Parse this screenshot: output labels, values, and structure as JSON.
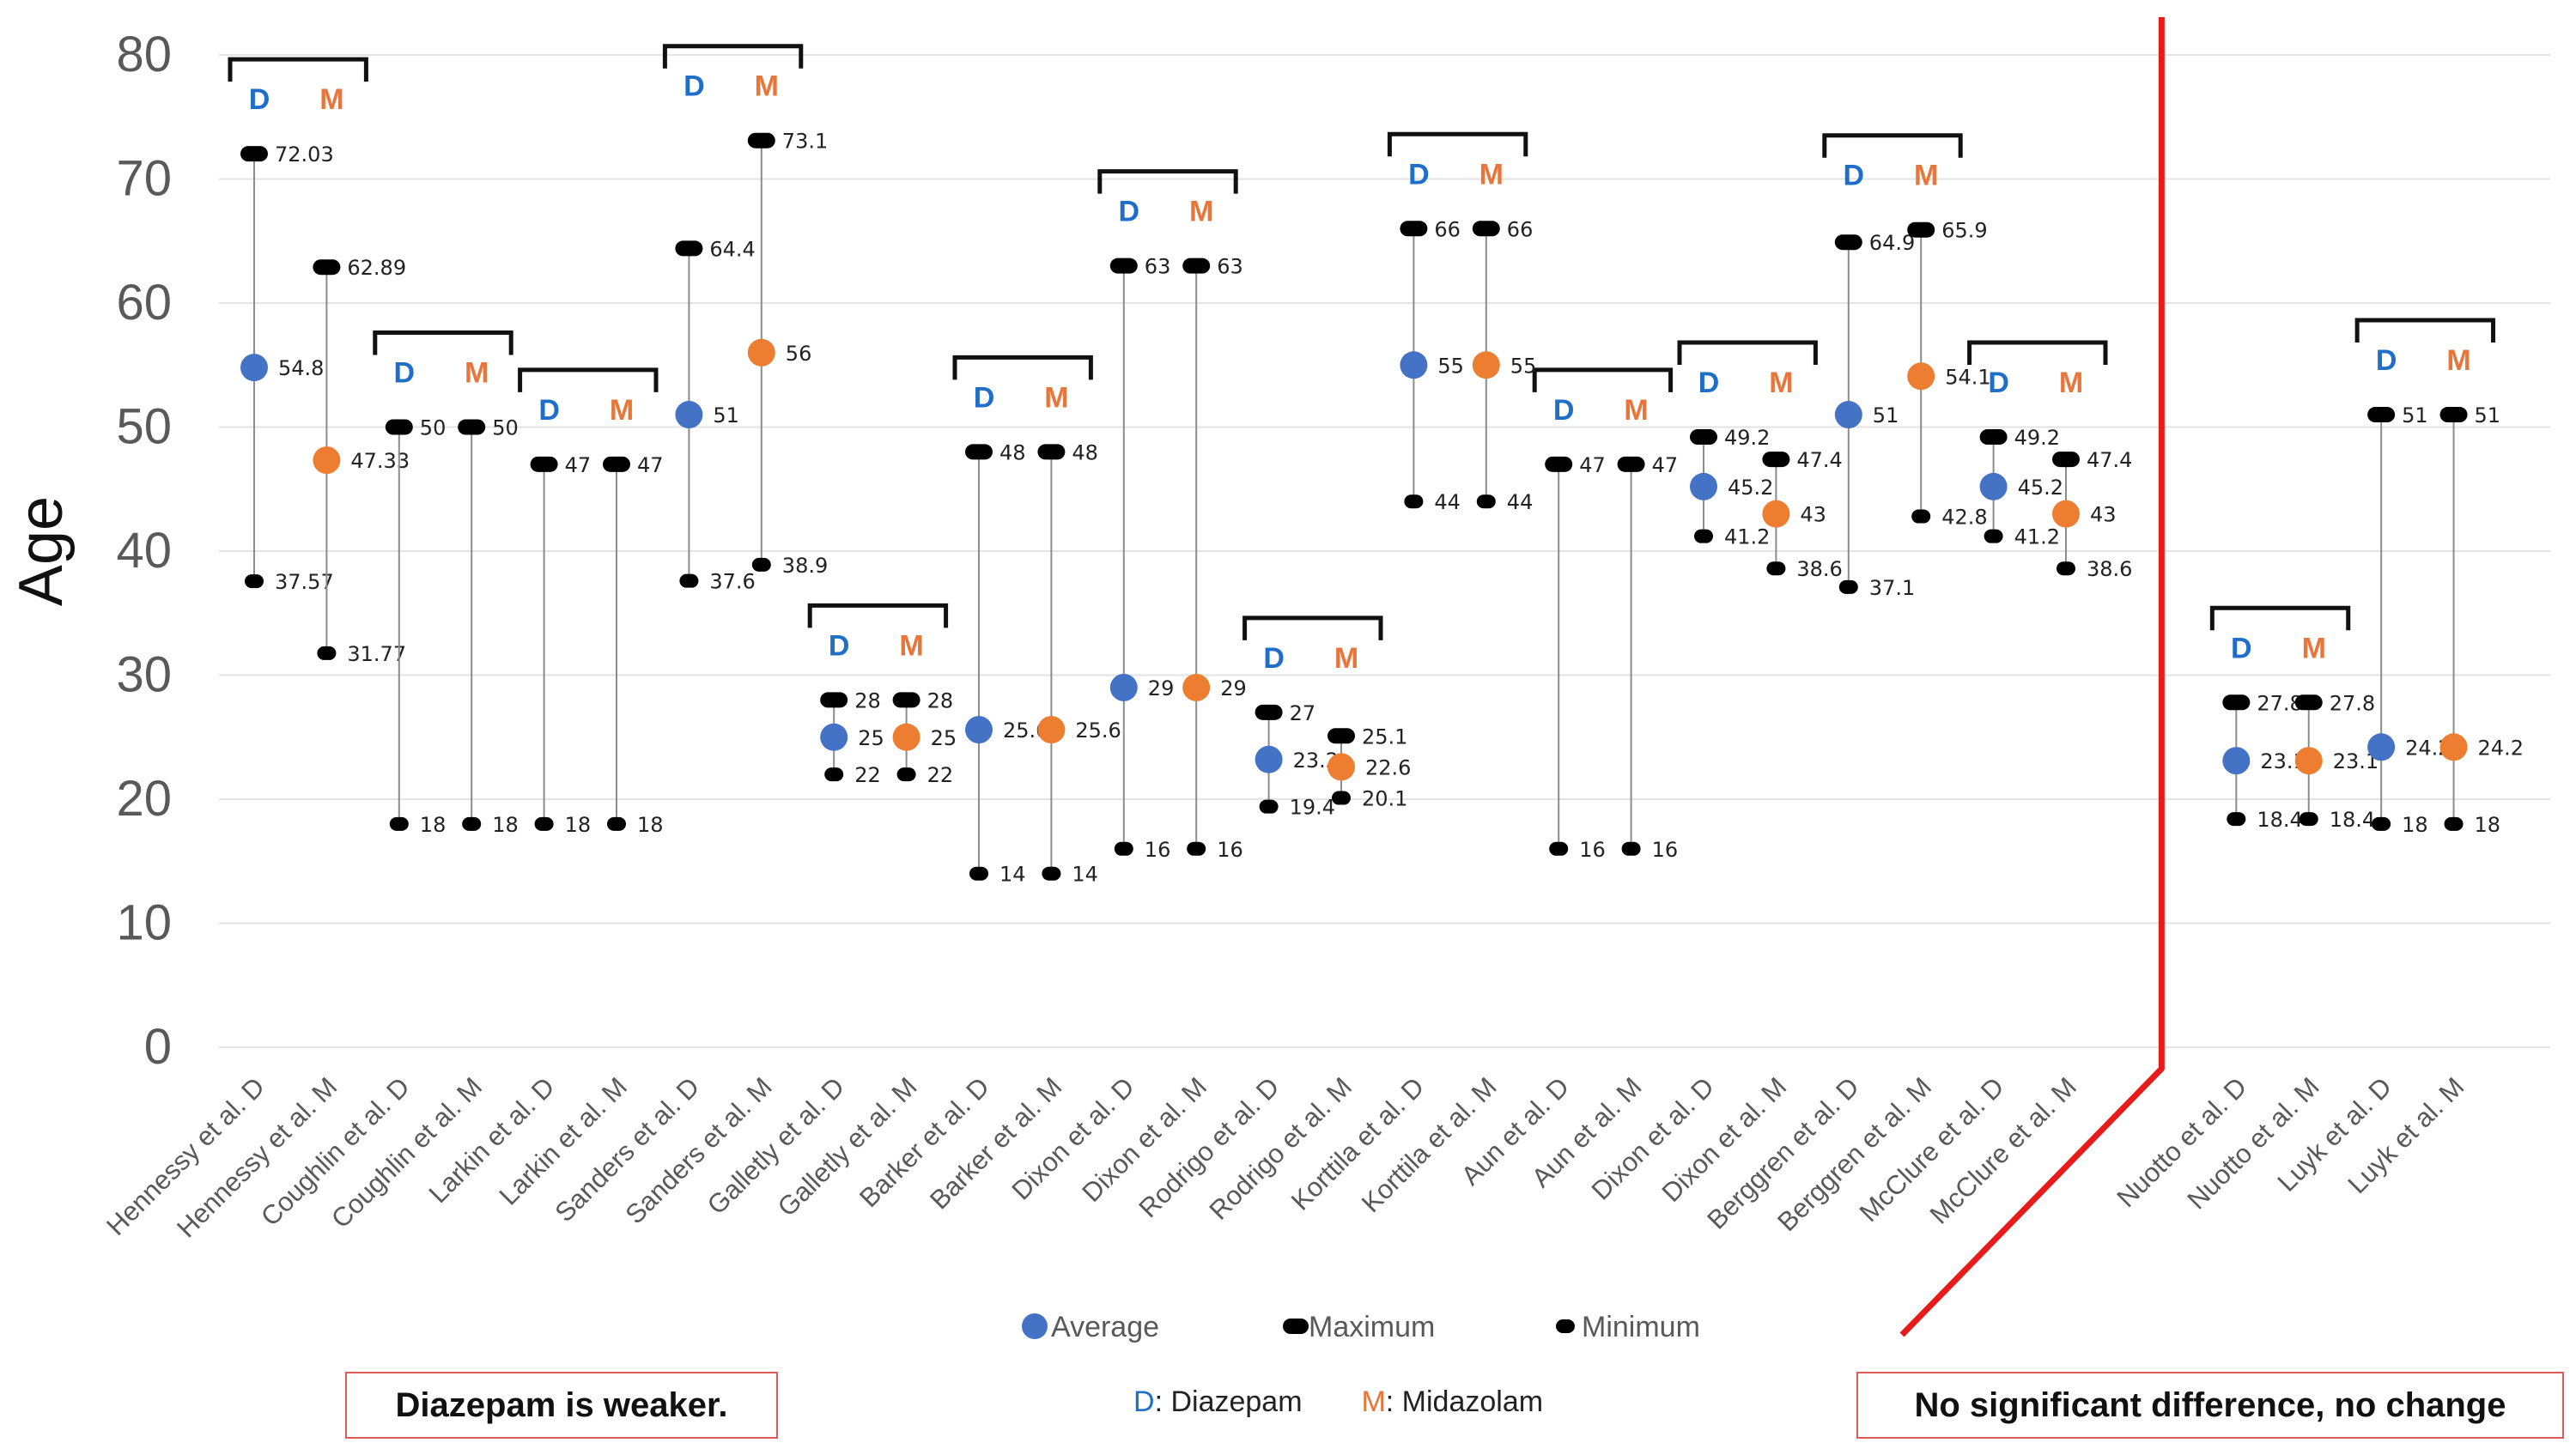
{
  "chart_data": {
    "type": "range-dot",
    "ylabel": "Age",
    "xlabel": "",
    "ylim": [
      0,
      80
    ],
    "yticks": [
      0,
      10,
      20,
      30,
      40,
      50,
      60,
      70,
      80
    ],
    "grid": true,
    "series_legend": [
      {
        "name": "Average",
        "color": "#4472c4"
      },
      {
        "name": "Maximum",
        "color": "#000000"
      },
      {
        "name": "Minimum",
        "color": "#000000"
      }
    ],
    "groups": [
      {
        "pair": [
          "D",
          "M"
        ],
        "studies": [
          {
            "label": "Hennessy et al. D",
            "drug": "D",
            "avg": 54.8,
            "max": 72.03,
            "min": 37.57
          },
          {
            "label": "Hennessy et al. M",
            "drug": "M",
            "avg": 47.33,
            "max": 62.89,
            "min": 31.77
          }
        ]
      },
      {
        "pair": [
          "D",
          "M"
        ],
        "studies": [
          {
            "label": "Coughlin et al. D",
            "drug": "D",
            "avg": null,
            "max": 50,
            "min": 18
          },
          {
            "label": "Coughlin et al. M",
            "drug": "M",
            "avg": null,
            "max": 50,
            "min": 18
          }
        ]
      },
      {
        "pair": [
          "D",
          "M"
        ],
        "studies": [
          {
            "label": "Larkin et al. D",
            "drug": "D",
            "avg": null,
            "max": 47,
            "min": 18
          },
          {
            "label": "Larkin et al. M",
            "drug": "M",
            "avg": null,
            "max": 47,
            "min": 18
          }
        ]
      },
      {
        "pair": [
          "D",
          "M"
        ],
        "studies": [
          {
            "label": "Sanders et al. D",
            "drug": "D",
            "avg": 51,
            "max": 64.4,
            "min": 37.6
          },
          {
            "label": "Sanders et al. M",
            "drug": "M",
            "avg": 56,
            "max": 73.1,
            "min": 38.9
          }
        ]
      },
      {
        "pair": [
          "D",
          "M"
        ],
        "studies": [
          {
            "label": "Galletly et al. D",
            "drug": "D",
            "avg": 25,
            "max": 28,
            "min": 22
          },
          {
            "label": "Galletly et al. M",
            "drug": "M",
            "avg": 25,
            "max": 28,
            "min": 22
          }
        ]
      },
      {
        "pair": [
          "D",
          "M"
        ],
        "studies": [
          {
            "label": "Barker et al. D",
            "drug": "D",
            "avg": 25.6,
            "max": 48,
            "min": 14
          },
          {
            "label": "Barker et al. M",
            "drug": "M",
            "avg": 25.6,
            "max": 48,
            "min": 14
          }
        ]
      },
      {
        "pair": [
          "D",
          "M"
        ],
        "studies": [
          {
            "label": "Dixon et al. D",
            "drug": "D",
            "avg": 29,
            "max": 63,
            "min": 16
          },
          {
            "label": "Dixon et al. M",
            "drug": "M",
            "avg": 29,
            "max": 63,
            "min": 16
          }
        ]
      },
      {
        "pair": [
          "D",
          "M"
        ],
        "studies": [
          {
            "label": "Rodrigo et al. D",
            "drug": "D",
            "avg": 23.2,
            "max": 27,
            "min": 19.4
          },
          {
            "label": "Rodrigo et al. M",
            "drug": "M",
            "avg": 22.6,
            "max": 25.1,
            "min": 20.1
          }
        ]
      },
      {
        "pair": [
          "D",
          "M"
        ],
        "studies": [
          {
            "label": "Korttila et al. D",
            "drug": "D",
            "avg": 55,
            "max": 66,
            "min": 44
          },
          {
            "label": "Korttila et al. M",
            "drug": "M",
            "avg": 55,
            "max": 66,
            "min": 44
          }
        ]
      },
      {
        "pair": [
          "D",
          "M"
        ],
        "studies": [
          {
            "label": "Aun et al. D",
            "drug": "D",
            "avg": null,
            "max": 47,
            "min": 16
          },
          {
            "label": "Aun et al. M",
            "drug": "M",
            "avg": null,
            "max": 47,
            "min": 16
          }
        ]
      },
      {
        "pair": [
          "D",
          "M"
        ],
        "studies": [
          {
            "label": "Dixon et al. D",
            "drug": "D",
            "avg": 45.2,
            "max": 49.2,
            "min": 41.2
          },
          {
            "label": "Dixon et al. M",
            "drug": "M",
            "avg": 43,
            "max": 47.4,
            "min": 38.6
          }
        ]
      },
      {
        "pair": [
          "D",
          "M"
        ],
        "studies": [
          {
            "label": "Berggren et al. D",
            "drug": "D",
            "avg": 51,
            "max": 64.9,
            "min": 37.1
          },
          {
            "label": "Berggren et al. M",
            "drug": "M",
            "avg": 54.1,
            "max": 65.9,
            "min": 42.8
          }
        ]
      },
      {
        "pair": [
          "D",
          "M"
        ],
        "studies": [
          {
            "label": "McClure et al. D",
            "drug": "D",
            "avg": 45.2,
            "max": 49.2,
            "min": 41.2
          },
          {
            "label": "McClure et al. M",
            "drug": "M",
            "avg": 43,
            "max": 47.4,
            "min": 38.6
          }
        ]
      },
      {
        "pair": [
          "D",
          "M"
        ],
        "studies": [
          {
            "label": "Nuotto et al. D",
            "drug": "D",
            "avg": 23.1,
            "max": 27.8,
            "min": 18.4
          },
          {
            "label": "Nuotto et al. M",
            "drug": "M",
            "avg": 23.1,
            "max": 27.8,
            "min": 18.4
          }
        ]
      },
      {
        "pair": [
          "D",
          "M"
        ],
        "studies": [
          {
            "label": "Luyk et al. D",
            "drug": "D",
            "avg": 24.2,
            "max": 51,
            "min": 18
          },
          {
            "label": "Luyk et al. M",
            "drug": "M",
            "avg": 24.2,
            "max": 51,
            "min": 18
          }
        ]
      }
    ],
    "colors": {
      "avg_D": "#4472c4",
      "avg_M": "#ed7d31",
      "letter_D": "#1f6fc9",
      "letter_M": "#e8763a",
      "divider": "#e81b1b",
      "grid": "#e3e3e3"
    }
  },
  "annotations": {
    "left_note": "Diazepam is weaker.",
    "right_note": "No significant difference, no change",
    "key_d_letter": "D",
    "key_d_text": ": Diazepam",
    "key_m_letter": "M",
    "key_m_text": ": Midazolam"
  }
}
